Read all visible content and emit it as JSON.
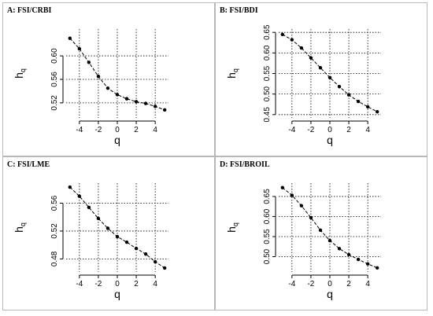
{
  "panels": [
    {
      "title": "A: FSI/CRBI"
    },
    {
      "title": "B: FSI/BDI"
    },
    {
      "title": "C: FSI/LME"
    },
    {
      "title": "D: FSI/BROIL"
    }
  ],
  "chart_data": [
    {
      "type": "line",
      "title": "A: FSI/CRBI",
      "xlabel": "q",
      "ylabel": "h",
      "ylabel_subscript": "q",
      "x": [
        -5,
        -4,
        -3,
        -2,
        -1,
        0,
        1,
        2,
        3,
        4,
        5
      ],
      "series": [
        {
          "values": [
            0.63,
            0.612,
            0.589,
            0.565,
            0.545,
            0.534,
            0.527,
            0.522,
            0.519,
            0.514,
            0.508
          ]
        }
      ],
      "xlim": [
        -5,
        5
      ],
      "ylim": [
        0.5,
        0.64
      ],
      "xticks": [
        -4,
        -2,
        0,
        2,
        4
      ],
      "yticks": [
        0.52,
        0.56,
        0.6
      ],
      "xtick_labels": [
        "-4",
        "-2",
        "0",
        "2",
        "4"
      ],
      "ytick_labels": [
        "0.52",
        "0.56",
        "0.60"
      ],
      "grid": true
    },
    {
      "type": "line",
      "title": "B: FSI/BDI",
      "xlabel": "q",
      "ylabel": "h",
      "ylabel_subscript": "q",
      "x": [
        -5,
        -4,
        -3,
        -2,
        -1,
        0,
        1,
        2,
        3,
        4,
        5
      ],
      "series": [
        {
          "values": [
            0.645,
            0.632,
            0.612,
            0.588,
            0.564,
            0.54,
            0.518,
            0.498,
            0.482,
            0.469,
            0.457
          ]
        }
      ],
      "xlim": [
        -5,
        5
      ],
      "ylim": [
        0.45,
        0.65
      ],
      "xticks": [
        -4,
        -2,
        0,
        2,
        4
      ],
      "yticks": [
        0.45,
        0.5,
        0.55,
        0.6,
        0.65
      ],
      "xtick_labels": [
        "-4",
        "-2",
        "0",
        "2",
        "4"
      ],
      "ytick_labels": [
        "0.45",
        "0.50",
        "0.55",
        "0.60",
        "0.65"
      ],
      "grid": true
    },
    {
      "type": "line",
      "title": "C: FSI/LME",
      "xlabel": "q",
      "ylabel": "h",
      "ylabel_subscript": "q",
      "x": [
        -5,
        -4,
        -3,
        -2,
        -1,
        0,
        1,
        2,
        3,
        4,
        5
      ],
      "series": [
        {
          "values": [
            0.583,
            0.57,
            0.554,
            0.538,
            0.524,
            0.512,
            0.504,
            0.495,
            0.487,
            0.476,
            0.467
          ]
        }
      ],
      "xlim": [
        -5,
        5
      ],
      "ylim": [
        0.466,
        0.584
      ],
      "xticks": [
        -4,
        -2,
        0,
        2,
        4
      ],
      "yticks": [
        0.48,
        0.52,
        0.56
      ],
      "xtick_labels": [
        "-4",
        "-2",
        "0",
        "2",
        "4"
      ],
      "ytick_labels": [
        "0.48",
        "0.52",
        "0.56"
      ],
      "grid": true
    },
    {
      "type": "line",
      "title": "D: FSI/BROIL",
      "xlabel": "q",
      "ylabel": "h",
      "ylabel_subscript": "q",
      "x": [
        -5,
        -4,
        -3,
        -2,
        -1,
        0,
        1,
        2,
        3,
        4,
        5
      ],
      "series": [
        {
          "values": [
            0.672,
            0.653,
            0.627,
            0.597,
            0.566,
            0.54,
            0.52,
            0.505,
            0.493,
            0.482,
            0.472
          ]
        }
      ],
      "xlim": [
        -5,
        5
      ],
      "ylim": [
        0.47,
        0.675
      ],
      "xticks": [
        -4,
        -2,
        0,
        2,
        4
      ],
      "yticks": [
        0.5,
        0.55,
        0.6,
        0.65
      ],
      "xtick_labels": [
        "-4",
        "-2",
        "0",
        "2",
        "4"
      ],
      "ytick_labels": [
        "0.50",
        "0.55",
        "0.60",
        "0.65"
      ],
      "grid": true
    }
  ],
  "colors": {
    "line": "#000000",
    "grid": "#000000",
    "panel_border": "#b8b8b8"
  }
}
